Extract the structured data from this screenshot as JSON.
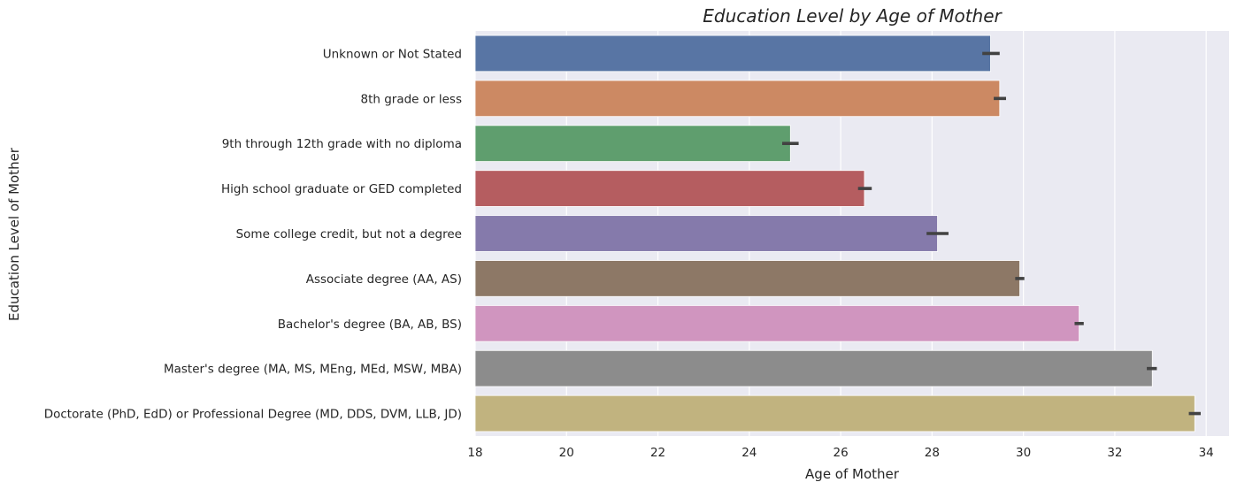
{
  "chart_data": {
    "type": "bar",
    "orientation": "horizontal",
    "title": "Education Level by Age of Mother",
    "xlabel": "Age of Mother",
    "ylabel": "Education Level of Mother",
    "xlim": [
      18,
      34.5
    ],
    "xticks": [
      18,
      20,
      22,
      24,
      26,
      28,
      30,
      32,
      34
    ],
    "grid": true,
    "legend": "none",
    "background": "#eaeaf2",
    "categories": [
      "Unknown or Not Stated",
      "8th grade or less",
      "9th through 12th grade with no diploma",
      "High school graduate or GED completed",
      "Some college credit, but not a degree",
      "Associate degree (AA, AS)",
      "Bachelor's degree (BA, AB, BS)",
      "Master's degree (MA, MS, MEng, MEd, MSW, MBA)",
      "Doctorate (PhD, EdD) or Professional Degree (MD, DDS, DVM, LLB, JD)"
    ],
    "values": [
      29.28,
      29.48,
      24.9,
      26.52,
      28.12,
      29.92,
      31.22,
      32.82,
      33.75
    ],
    "error_low": [
      29.1,
      29.35,
      24.72,
      26.38,
      27.88,
      29.82,
      31.12,
      32.7,
      33.62
    ],
    "error_high": [
      29.48,
      29.62,
      25.08,
      26.68,
      28.36,
      30.02,
      31.32,
      32.92,
      33.88
    ],
    "colors": [
      "#5875a4",
      "#cc8963",
      "#5f9e6e",
      "#b55d60",
      "#857aab",
      "#8d7866",
      "#d095bf",
      "#8c8c8c",
      "#c1b37f"
    ]
  }
}
